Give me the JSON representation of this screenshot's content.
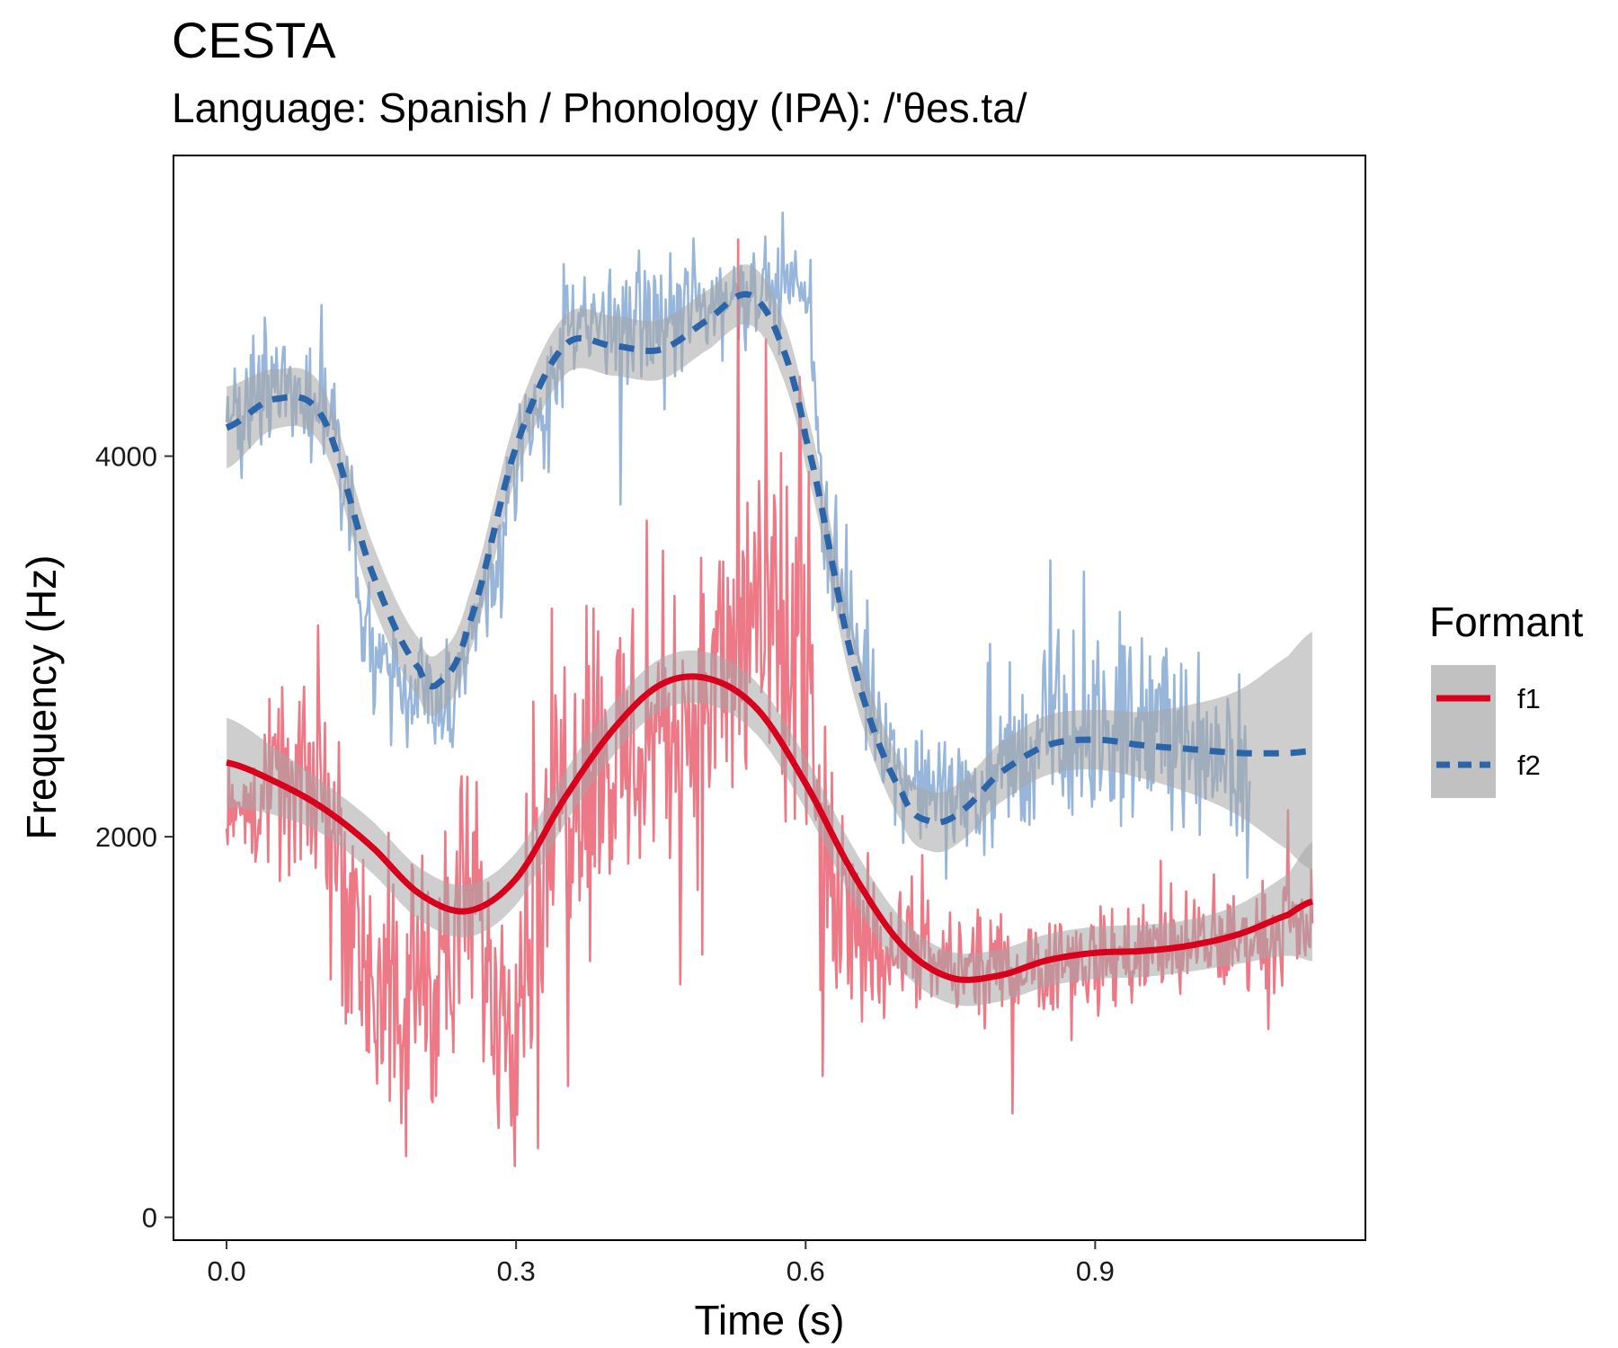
{
  "chart_data": {
    "type": "line",
    "title": "CESTA",
    "subtitle": "Language: Spanish / Phonology (IPA): /'θes.ta/",
    "xlabel": "Time (s)",
    "ylabel": "Frequency (Hz)",
    "xlim": [
      -0.055,
      1.18
    ],
    "ylim": [
      -120,
      5580
    ],
    "x_ticks": [
      0.0,
      0.3,
      0.6,
      0.9
    ],
    "x_tick_labels": [
      "0.0",
      "0.3",
      "0.6",
      "0.9"
    ],
    "y_ticks": [
      0,
      2000,
      4000
    ],
    "y_tick_labels": [
      "0",
      "2000",
      "4000"
    ],
    "grid": false,
    "legend": {
      "title": "Formant",
      "position": "right",
      "entries": [
        {
          "label": "f1",
          "color": "#d7001d",
          "linetype": "solid"
        },
        {
          "label": "f2",
          "color": "#2b64a9",
          "linetype": "dashed"
        }
      ]
    },
    "duration": 1.125,
    "series": [
      {
        "name": "f1",
        "raw_color": "#ea6272",
        "smooth_color": "#d7001d",
        "linetype": "solid",
        "raw_envelope": {
          "t": [
            0.0,
            0.05,
            0.1,
            0.13,
            0.15,
            0.18,
            0.2,
            0.23,
            0.25,
            0.28,
            0.3,
            0.33,
            0.35,
            0.38,
            0.4,
            0.45,
            0.5,
            0.55,
            0.6,
            0.62,
            0.65,
            0.7,
            0.75,
            0.8,
            0.85,
            0.9,
            0.95,
            1.0,
            1.05,
            1.1,
            1.125
          ],
          "mean": [
            2050,
            2250,
            2250,
            1600,
            1300,
            900,
            1400,
            1300,
            1700,
            1200,
            1200,
            2000,
            2300,
            2500,
            2400,
            2600,
            2700,
            3200,
            2700,
            1700,
            1500,
            1400,
            1300,
            1300,
            1350,
            1350,
            1400,
            1400,
            1450,
            1500,
            1550
          ],
          "amp": [
            250,
            500,
            600,
            800,
            900,
            900,
            900,
            900,
            800,
            800,
            900,
            900,
            1000,
            1100,
            1000,
            900,
            900,
            1300,
            1300,
            900,
            500,
            350,
            300,
            300,
            300,
            300,
            300,
            300,
            300,
            300,
            300
          ]
        },
        "smooth": {
          "t": [
            0.0,
            0.05,
            0.1,
            0.15,
            0.2,
            0.25,
            0.3,
            0.35,
            0.4,
            0.45,
            0.5,
            0.55,
            0.6,
            0.65,
            0.7,
            0.75,
            0.8,
            0.85,
            0.9,
            0.95,
            1.0,
            1.05,
            1.1,
            1.125
          ],
          "values": [
            2390,
            2290,
            2150,
            1950,
            1700,
            1610,
            1780,
            2200,
            2560,
            2800,
            2830,
            2670,
            2280,
            1800,
            1430,
            1260,
            1270,
            1350,
            1390,
            1400,
            1430,
            1490,
            1590,
            1660
          ],
          "se": [
            120,
            90,
            70,
            70,
            70,
            70,
            70,
            70,
            70,
            70,
            70,
            70,
            70,
            70,
            70,
            70,
            70,
            70,
            70,
            70,
            70,
            80,
            110,
            160
          ]
        }
      },
      {
        "name": "f2",
        "raw_color": "#86a9d3",
        "smooth_color": "#2b64a9",
        "linetype": "dashed",
        "t_end": 1.06,
        "raw_envelope": {
          "t": [
            0.0,
            0.05,
            0.1,
            0.13,
            0.15,
            0.18,
            0.2,
            0.23,
            0.25,
            0.28,
            0.3,
            0.33,
            0.35,
            0.4,
            0.45,
            0.5,
            0.55,
            0.6,
            0.62,
            0.65,
            0.7,
            0.75,
            0.8,
            0.85,
            0.9,
            0.95,
            1.0,
            1.06
          ],
          "mean": [
            4200,
            4350,
            4300,
            3700,
            3000,
            2800,
            2700,
            2700,
            3000,
            3500,
            3900,
            4300,
            4600,
            4700,
            4700,
            4800,
            4900,
            4900,
            3700,
            3000,
            2300,
            2200,
            2300,
            2500,
            2500,
            2600,
            2500,
            2400
          ],
          "amp": [
            300,
            400,
            400,
            400,
            400,
            400,
            400,
            400,
            400,
            400,
            400,
            400,
            400,
            400,
            400,
            350,
            250,
            200,
            400,
            400,
            300,
            350,
            450,
            500,
            550,
            550,
            500,
            500
          ]
        },
        "smooth": {
          "t": [
            0.0,
            0.05,
            0.1,
            0.15,
            0.2,
            0.22,
            0.25,
            0.3,
            0.35,
            0.4,
            0.45,
            0.5,
            0.54,
            0.57,
            0.6,
            0.65,
            0.7,
            0.73,
            0.76,
            0.8,
            0.85,
            0.9,
            0.95,
            1.0,
            1.05,
            1.1,
            1.125
          ],
          "values": [
            4150,
            4300,
            4200,
            3400,
            2880,
            2810,
            3100,
            4050,
            4580,
            4580,
            4560,
            4720,
            4850,
            4650,
            4100,
            2900,
            2230,
            2080,
            2130,
            2330,
            2480,
            2510,
            2480,
            2460,
            2440,
            2440,
            2450
          ],
          "se": [
            110,
            80,
            80,
            80,
            80,
            80,
            80,
            80,
            80,
            80,
            80,
            80,
            80,
            80,
            80,
            80,
            80,
            80,
            80,
            80,
            80,
            80,
            90,
            120,
            170,
            260,
            320
          ]
        }
      }
    ]
  }
}
